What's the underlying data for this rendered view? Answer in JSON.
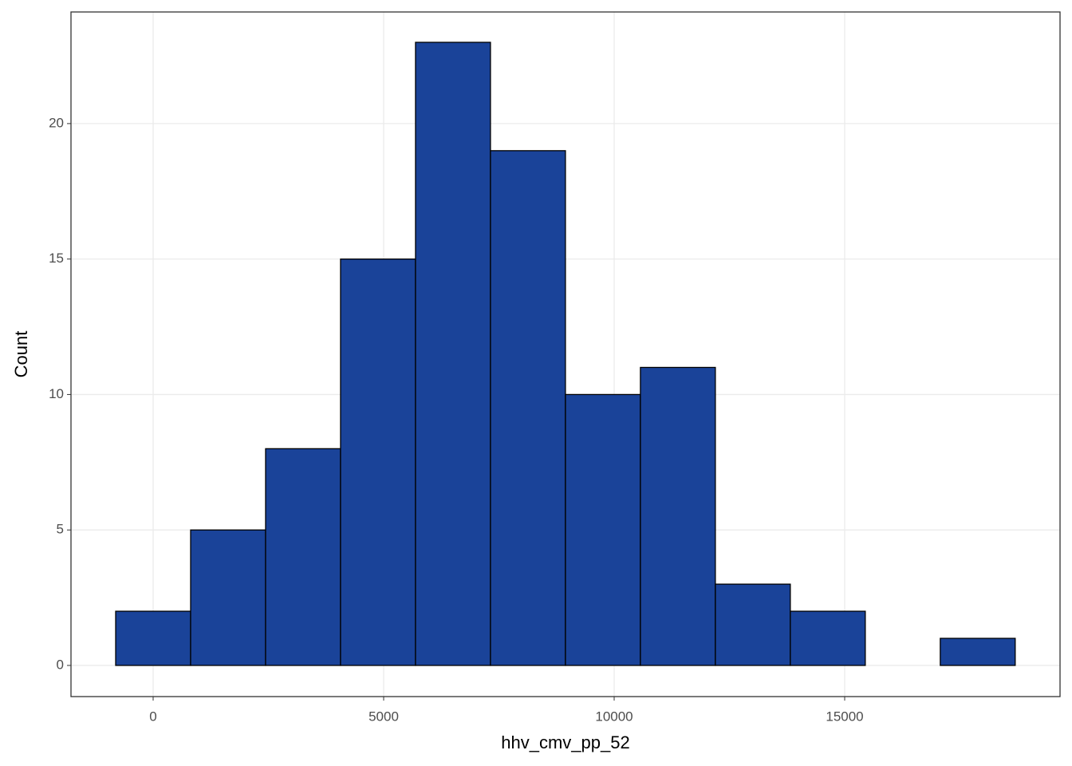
{
  "chart_data": {
    "type": "histogram",
    "x_label": "hhv_cmv_pp_52",
    "y_label": "Count",
    "bins": [
      -813,
      813,
      2439,
      4065,
      5691,
      7317,
      8943,
      10569,
      12195,
      13821,
      15447,
      17073,
      18699
    ],
    "values": [
      2,
      5,
      8,
      15,
      23,
      19,
      10,
      11,
      3,
      2,
      0,
      1
    ],
    "color": "#1a4399",
    "xlim": [
      -1782,
      19671
    ],
    "xticks": [
      0,
      5000,
      10000,
      15000
    ],
    "ylim": [
      -1.15,
      24.12
    ],
    "yticks": [
      0,
      5,
      10,
      15,
      20
    ],
    "grid": true
  }
}
